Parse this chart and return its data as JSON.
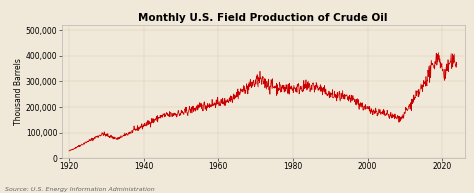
{
  "title": "Monthly U.S. Field Production of Crude Oil",
  "ylabel": "Thousand Barrels",
  "source_text": "Source: U.S. Energy Information Administration",
  "background_color": "#f0e8d8",
  "plot_bg_color": "#f0e8d8",
  "line_color": "#cc0000",
  "xlim": [
    1918,
    2026
  ],
  "ylim": [
    0,
    520000
  ],
  "yticks": [
    0,
    100000,
    200000,
    300000,
    400000,
    500000
  ],
  "ytick_labels": [
    "0",
    "100,000",
    "200,000",
    "300,000",
    "400,000",
    "500,000"
  ],
  "xticks": [
    1920,
    1940,
    1960,
    1980,
    2000,
    2020
  ],
  "title_fontsize": 7.5,
  "axis_fontsize": 5.5,
  "tick_fontsize": 5.5,
  "source_fontsize": 4.5
}
